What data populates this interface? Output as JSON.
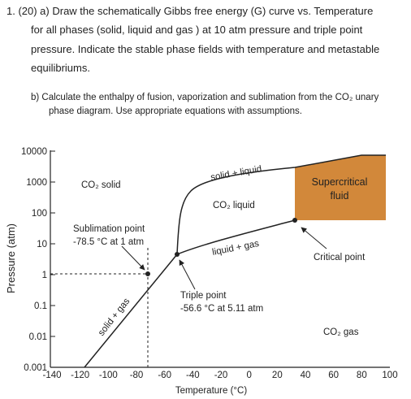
{
  "question": {
    "part_a": [
      "1.  (20) a) Draw the schematically Gibbs free energy (G) curve vs. Temperature",
      "for all phases  (solid, liquid and gas ) at 10 atm pressure and triple point",
      "pressure. Indicate the stable phase fields with temperature and metastable",
      "equilibriums."
    ],
    "part_b": [
      "b)  Calculate the enthalpy of fusion, vaporization and sublimation from the CO₂ unary",
      "phase diagram. Use appropriate equations with assumptions."
    ]
  },
  "figure": {
    "y_axis_label": "Pressure (atm)",
    "x_axis_label": "Temperature (°C)",
    "yticks": [
      "10000",
      "1000",
      "100",
      "10",
      "1",
      "0.1",
      "0.01",
      "0.001"
    ],
    "xticks": [
      "-140",
      "-120",
      "-100",
      "-80",
      "-60",
      "-40",
      "-20",
      "0",
      "20",
      "40",
      "60",
      "80",
      "100"
    ],
    "labels": {
      "solid": "CO₂ solid",
      "solid_liquid": "solid + liquid",
      "liquid": "CO₂ liquid",
      "supercritical": [
        "Supercritical",
        "fluid"
      ],
      "sublimation": [
        "Sublimation point",
        "-78.5 °C at 1 atm"
      ],
      "liquid_gas": "liquid + gas",
      "critical": "Critical point",
      "triple": [
        "Triple point",
        "-56.6 °C at 5.11 atm"
      ],
      "solid_gas": "solid + gas",
      "gas": "CO₂ gas"
    }
  }
}
